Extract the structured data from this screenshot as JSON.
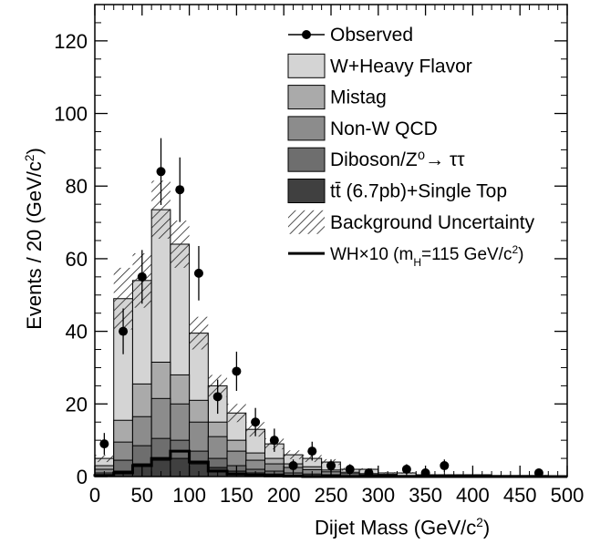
{
  "chart_data": {
    "type": "histogram",
    "xlabel": "Dijet Mass (GeV/c",
    "xlabel_sup": "2",
    "xlabel_close": ")",
    "ylabel": "Events / 20 (GeV/c",
    "ylabel_sup": "2",
    "ylabel_close": ")",
    "xlim": [
      0,
      500
    ],
    "ylim": [
      0,
      130
    ],
    "xticks": [
      0,
      50,
      100,
      150,
      200,
      250,
      300,
      350,
      400,
      450,
      500
    ],
    "yticks": [
      0,
      20,
      40,
      60,
      80,
      100,
      120
    ],
    "bin_width": 20,
    "bin_edges": [
      0,
      20,
      40,
      60,
      80,
      100,
      120,
      140,
      160,
      180,
      200,
      220,
      240,
      260,
      280,
      300,
      320,
      340,
      360,
      380,
      400,
      420,
      440,
      460,
      480,
      500
    ],
    "stack": [
      {
        "name": "tt (6.7pb)+Single Top",
        "color": "#404040",
        "values": [
          0.5,
          1.5,
          3.5,
          4.5,
          5,
          3.5,
          2.5,
          1.5,
          1,
          0.7,
          0.4,
          0.3,
          0.2,
          0.1,
          0,
          0,
          0,
          0,
          0,
          0,
          0,
          0,
          0,
          0,
          0
        ]
      },
      {
        "name": "Diboson/Z0→ττ",
        "color": "#6e6e6e",
        "values": [
          0.5,
          3,
          5,
          6,
          5,
          3.5,
          2.5,
          1.5,
          1,
          0.8,
          0.6,
          0.4,
          0.3,
          0.2,
          0.1,
          0.1,
          0,
          0,
          0,
          0,
          0,
          0,
          0,
          0,
          0
        ]
      },
      {
        "name": "Non-W QCD",
        "color": "#8c8c8c",
        "values": [
          1,
          5,
          8,
          11,
          10,
          8,
          6,
          4,
          2.5,
          2,
          1.5,
          1.2,
          0.8,
          0.5,
          0.4,
          0.3,
          0.2,
          0.1,
          0.1,
          0,
          0,
          0,
          0,
          0,
          0
        ]
      },
      {
        "name": "Mistag",
        "color": "#aaaaaa",
        "values": [
          1,
          6,
          9,
          10,
          8,
          6,
          4,
          3,
          2,
          1.5,
          1,
          0.8,
          0.5,
          0.4,
          0.3,
          0.2,
          0.1,
          0.1,
          0.1,
          0,
          0,
          0,
          0,
          0,
          0
        ]
      },
      {
        "name": "W+Heavy Flavor",
        "color": "#d4d4d4",
        "values": [
          2,
          33.5,
          28.5,
          42,
          36,
          18.5,
          10,
          7.5,
          6.5,
          4,
          2.5,
          2.3,
          2.2,
          0.8,
          1.2,
          0.4,
          0.7,
          0.3,
          0.3,
          0.5,
          0.5,
          0.3,
          0.3,
          0.3,
          0
        ]
      }
    ],
    "uncertainty": {
      "name": "Background Uncertainty",
      "half_widths": [
        1,
        8.5,
        7.5,
        8,
        6.5,
        4.5,
        3,
        2.5,
        2,
        1.5,
        1.2,
        1,
        0.8,
        0.4,
        0.3,
        0.2,
        0.2,
        0.1,
        0.1,
        0.1,
        0.1,
        0.1,
        0.1,
        0.1,
        0
      ]
    },
    "signal": {
      "name": "WH×10 (mH=115 GeV/c2)",
      "values": [
        0.3,
        1,
        3,
        5,
        7,
        4,
        1.5,
        0.7,
        0.4,
        0.2,
        0.1,
        0,
        0,
        0,
        0,
        0,
        0,
        0,
        0,
        0,
        0,
        0,
        0,
        0,
        0
      ]
    },
    "observed": {
      "name": "Observed",
      "points": [
        {
          "x": 10,
          "y": 9,
          "err": 3
        },
        {
          "x": 30,
          "y": 40,
          "err": 6.3
        },
        {
          "x": 50,
          "y": 55,
          "err": 7.4
        },
        {
          "x": 70,
          "y": 84,
          "err": 9.2
        },
        {
          "x": 90,
          "y": 79,
          "err": 8.9
        },
        {
          "x": 110,
          "y": 56,
          "err": 7.5
        },
        {
          "x": 130,
          "y": 22,
          "err": 4.7
        },
        {
          "x": 150,
          "y": 29,
          "err": 5.4
        },
        {
          "x": 170,
          "y": 15,
          "err": 3.9
        },
        {
          "x": 190,
          "y": 10,
          "err": 3.2
        },
        {
          "x": 210,
          "y": 3,
          "err": 1.7
        },
        {
          "x": 230,
          "y": 7,
          "err": 2.6
        },
        {
          "x": 250,
          "y": 3,
          "err": 1.7
        },
        {
          "x": 270,
          "y": 2,
          "err": 1.4
        },
        {
          "x": 290,
          "y": 1,
          "err": 1
        },
        {
          "x": 330,
          "y": 2,
          "err": 1.4
        },
        {
          "x": 350,
          "y": 1,
          "err": 1
        },
        {
          "x": 370,
          "y": 3,
          "err": 1.7
        },
        {
          "x": 470,
          "y": 1,
          "err": 1
        }
      ]
    },
    "legend": {
      "placement": "top-right",
      "items": [
        {
          "key": "observed",
          "label": "Observed"
        },
        {
          "key": "whf",
          "label": "W+Heavy Flavor",
          "color": "#d4d4d4"
        },
        {
          "key": "mistag",
          "label": "Mistag",
          "color": "#aaaaaa"
        },
        {
          "key": "qcd",
          "label": "Non-W QCD",
          "color": "#8c8c8c"
        },
        {
          "key": "diboson",
          "label": "Diboson/Z⁰→ ττ",
          "color": "#6e6e6e"
        },
        {
          "key": "top",
          "label": "tt̄ (6.7pb)+Single Top",
          "color": "#404040"
        },
        {
          "key": "unc",
          "label": "Background Uncertainty"
        },
        {
          "key": "signal",
          "label": "WH×10 (m",
          "label_sub": "H",
          "label_rest": "=115 GeV/c",
          "label_sup": "2",
          "label_close": ")"
        }
      ]
    }
  }
}
